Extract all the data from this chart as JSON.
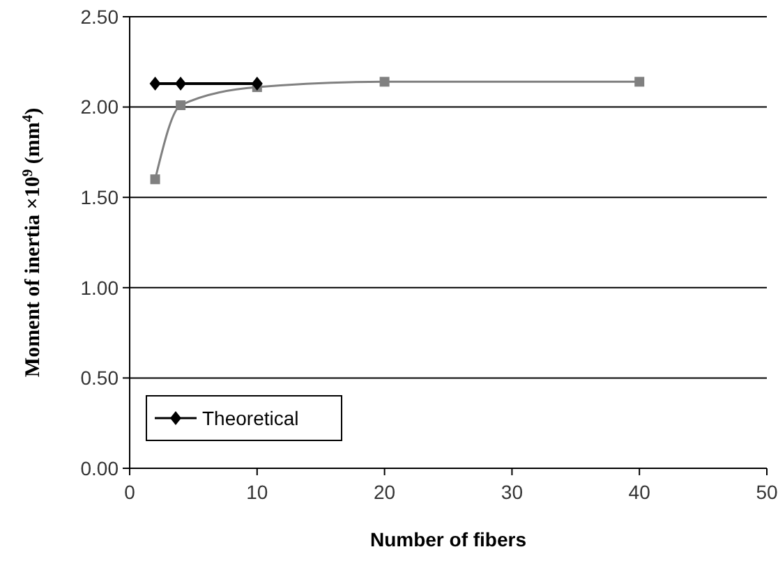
{
  "chart_data": {
    "type": "line",
    "xlabel": "Number of fibers",
    "ylabel": "Moment of inertia ×10$^{9}$ (mm$^{4}$)",
    "xlim": [
      0,
      50
    ],
    "xticks": [
      0,
      10,
      20,
      30,
      40,
      50
    ],
    "ylim": [
      0,
      2.5
    ],
    "yticks": [
      {
        "value": 0,
        "label": "0.00"
      },
      {
        "value": 0.5,
        "label": "0.50"
      },
      {
        "value": 1,
        "label": "1.00"
      },
      {
        "value": 1.5,
        "label": "1.50"
      },
      {
        "value": 2,
        "label": "2.00"
      },
      {
        "value": 2.5,
        "label": "2.50"
      }
    ],
    "grid": "y",
    "legend": "bottom left",
    "series": [
      {
        "name": "Theoretical",
        "color": "#000000",
        "marker": "diamond",
        "x": [
          2,
          4,
          10
        ],
        "values": [
          2.13,
          2.13,
          2.13
        ]
      },
      {
        "color": "#808080",
        "marker": "square",
        "x": [
          2,
          4,
          10,
          20,
          40
        ],
        "values": [
          1.6,
          2.01,
          2.11,
          2.14,
          2.14
        ]
      }
    ]
  }
}
